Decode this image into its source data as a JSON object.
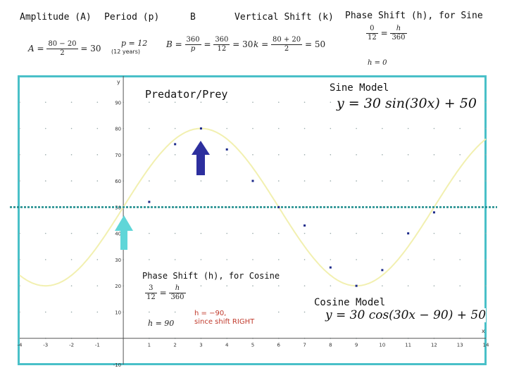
{
  "header": {
    "amplitude": {
      "title": "Amplitude (A)",
      "eq_lhs": "A = ",
      "num": "80 − 20",
      "den": "2",
      "eq_rhs": " = 30"
    },
    "period": {
      "title": "Period (p)",
      "eq": "p = 12",
      "note": "(12 years)"
    },
    "b": {
      "title": "B",
      "eq_lhs": "B = ",
      "num1": "360",
      "den1": "p",
      "mid": " = ",
      "num2": "360",
      "den2": "12",
      "eq_rhs": " = 30"
    },
    "vshift": {
      "title": "Vertical Shift (k)",
      "eq_lhs": "k = ",
      "num": "80 + 20",
      "den": "2",
      "eq_rhs": " = 50"
    },
    "phase_sine": {
      "title": "Phase Shift (h), for Sine",
      "num1": "0",
      "den1": "12",
      "eq": " = ",
      "num2": "h",
      "den2": "360",
      "result": "h = 0"
    }
  },
  "graph": {
    "title": "Predator/Prey",
    "sine_title": "Sine Model",
    "sine_eq": "y = 30 sin(30x) + 50",
    "cosine_title": "Cosine Model",
    "cosine_eq": "y = 30 cos(30x − 90) + 50",
    "phase_cosine": {
      "title": "Phase Shift (h), for Cosine",
      "num1": "3",
      "den1": "12",
      "eq": " = ",
      "num2": "h",
      "den2": "360",
      "result": "h = 90",
      "note_line1": "h = −90,",
      "note_line2": "since shift RIGHT"
    },
    "y_axis_label": "y",
    "x_axis_label": "x"
  },
  "colors": {
    "frame": "#49c0c8",
    "curve": "#f2f0b0",
    "dashed": "#1a8a8a",
    "arrow_dark": "#2d2f9e",
    "arrow_light": "#5fd6d8",
    "points": "#1c2a8a"
  },
  "chart_data": {
    "type": "scatter",
    "title": "Predator/Prey",
    "x_ticks": [
      "-4",
      "-3",
      "-2",
      "-1",
      "1",
      "2",
      "3",
      "4",
      "5",
      "6",
      "7",
      "8",
      "9",
      "10",
      "11",
      "12",
      "13",
      "14"
    ],
    "y_ticks": [
      "90",
      "80",
      "70",
      "60",
      "50",
      "40",
      "30",
      "20",
      "10",
      "-10"
    ],
    "xlim": [
      -4,
      14
    ],
    "ylim": [
      -10,
      100
    ],
    "grid": true,
    "points": [
      {
        "x": 1,
        "y": 52
      },
      {
        "x": 2,
        "y": 74
      },
      {
        "x": 3,
        "y": 80
      },
      {
        "x": 4,
        "y": 72
      },
      {
        "x": 5,
        "y": 60
      },
      {
        "x": 6,
        "y": 50
      },
      {
        "x": 7,
        "y": 43
      },
      {
        "x": 8,
        "y": 27
      },
      {
        "x": 9,
        "y": 20
      },
      {
        "x": 10,
        "y": 26
      },
      {
        "x": 11,
        "y": 40
      },
      {
        "x": 12,
        "y": 48
      }
    ],
    "series": [
      {
        "values": "y = 30 sin(30x) + 50",
        "amplitude": 30,
        "b": 30,
        "k": 50,
        "h": 0
      }
    ],
    "midline": 50
  }
}
